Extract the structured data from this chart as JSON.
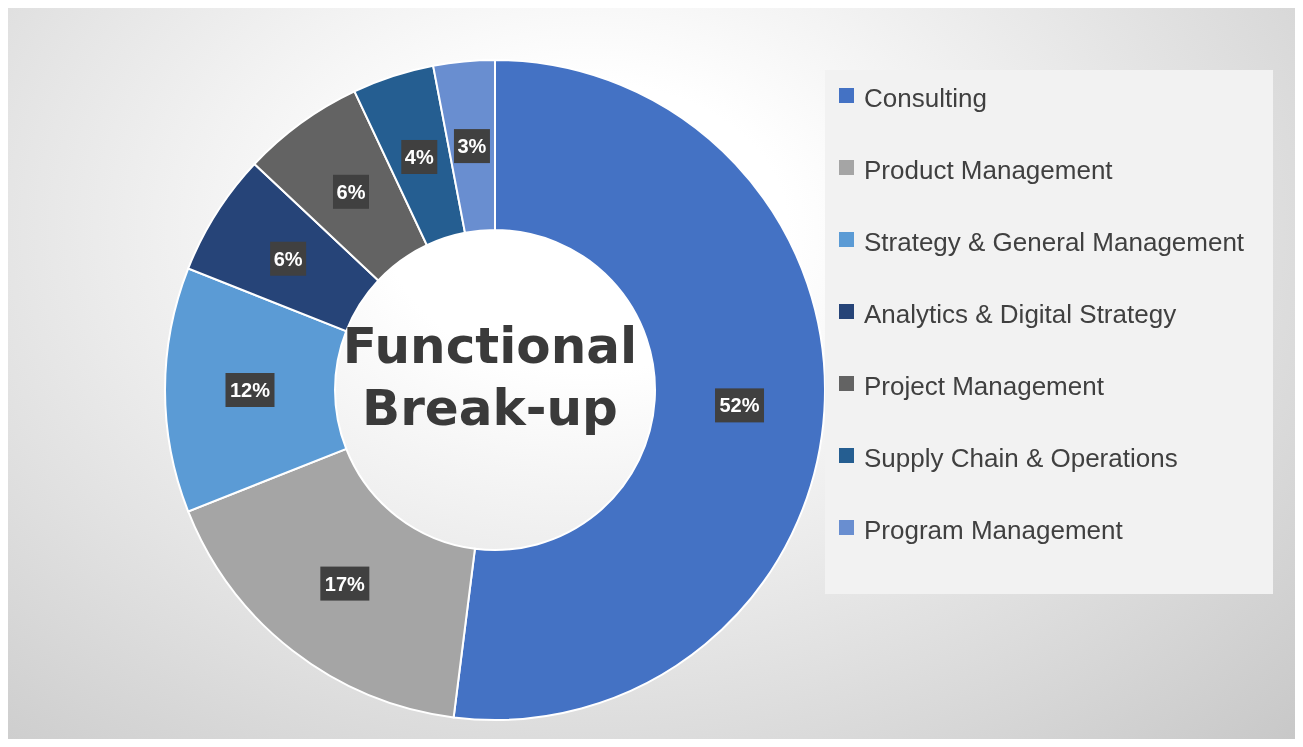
{
  "chart_data": {
    "type": "donut",
    "title": "Functional Break-up",
    "categories": [
      "Consulting",
      "Product Management",
      "Strategy & General Management",
      "Analytics & Digital Strategy",
      "Project Management",
      "Supply Chain & Operations",
      "Program Management"
    ],
    "values": [
      52,
      17,
      12,
      6,
      6,
      4,
      3
    ],
    "colors": [
      "#4472c4",
      "#a5a5a5",
      "#5b9bd5",
      "#264478",
      "#636363",
      "#255e91",
      "#698ed0"
    ],
    "value_labels": [
      "52%",
      "17%",
      "12%",
      "6%",
      "6%",
      "4%",
      "3%"
    ],
    "legend": "right"
  }
}
